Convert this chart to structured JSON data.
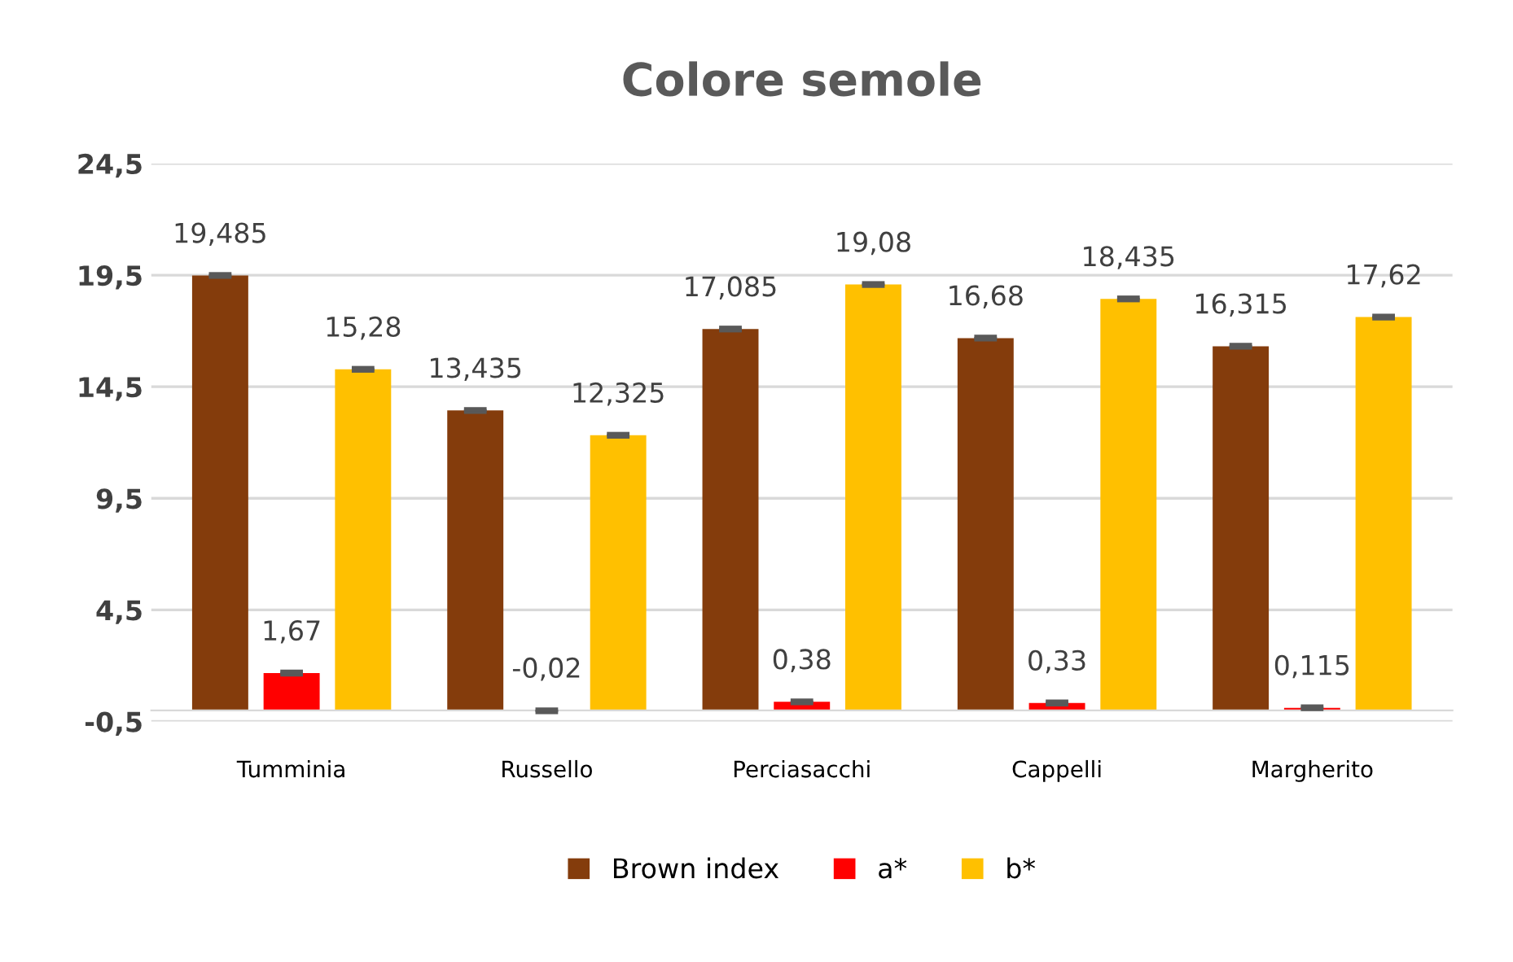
{
  "chart_data": {
    "type": "bar",
    "title": "Colore semole",
    "categories": [
      "Tumminia",
      "Russello",
      "Perciasacchi",
      "Cappelli",
      "Margherito"
    ],
    "series": [
      {
        "name": "Brown index",
        "color": "#843c0c",
        "values": [
          19.485,
          13.435,
          17.085,
          16.68,
          16.315
        ],
        "value_labels": [
          "19,485",
          "13,435",
          "17,085",
          "16,68",
          "16,315"
        ],
        "errors": [
          0.05,
          0.05,
          0.05,
          0.05,
          0.05
        ]
      },
      {
        "name": "a*",
        "color": "#ff0000",
        "values": [
          1.67,
          -0.02,
          0.38,
          0.33,
          0.115
        ],
        "value_labels": [
          "1,67",
          "-0,02",
          "0,38",
          "0,33",
          "0,115"
        ],
        "errors": [
          0.05,
          0.05,
          0.05,
          0.05,
          0.05
        ]
      },
      {
        "name": "b*",
        "color": "#ffc000",
        "values": [
          15.28,
          12.325,
          19.08,
          18.435,
          17.62
        ],
        "value_labels": [
          "15,28",
          "12,325",
          "19,08",
          "18,435",
          "17,62"
        ],
        "errors": [
          0.05,
          0.05,
          0.05,
          0.05,
          0.05
        ]
      }
    ],
    "ylim": [
      -0.5,
      24.5
    ],
    "yticks": [
      {
        "value": -0.5,
        "label": "-0,5"
      },
      {
        "value": 4.5,
        "label": "4,5"
      },
      {
        "value": 9.5,
        "label": "9,5"
      },
      {
        "value": 14.5,
        "label": "14,5"
      },
      {
        "value": 19.5,
        "label": "19,5"
      },
      {
        "value": 24.5,
        "label": "24,5"
      }
    ],
    "grid": "y",
    "legend": "bottom"
  }
}
